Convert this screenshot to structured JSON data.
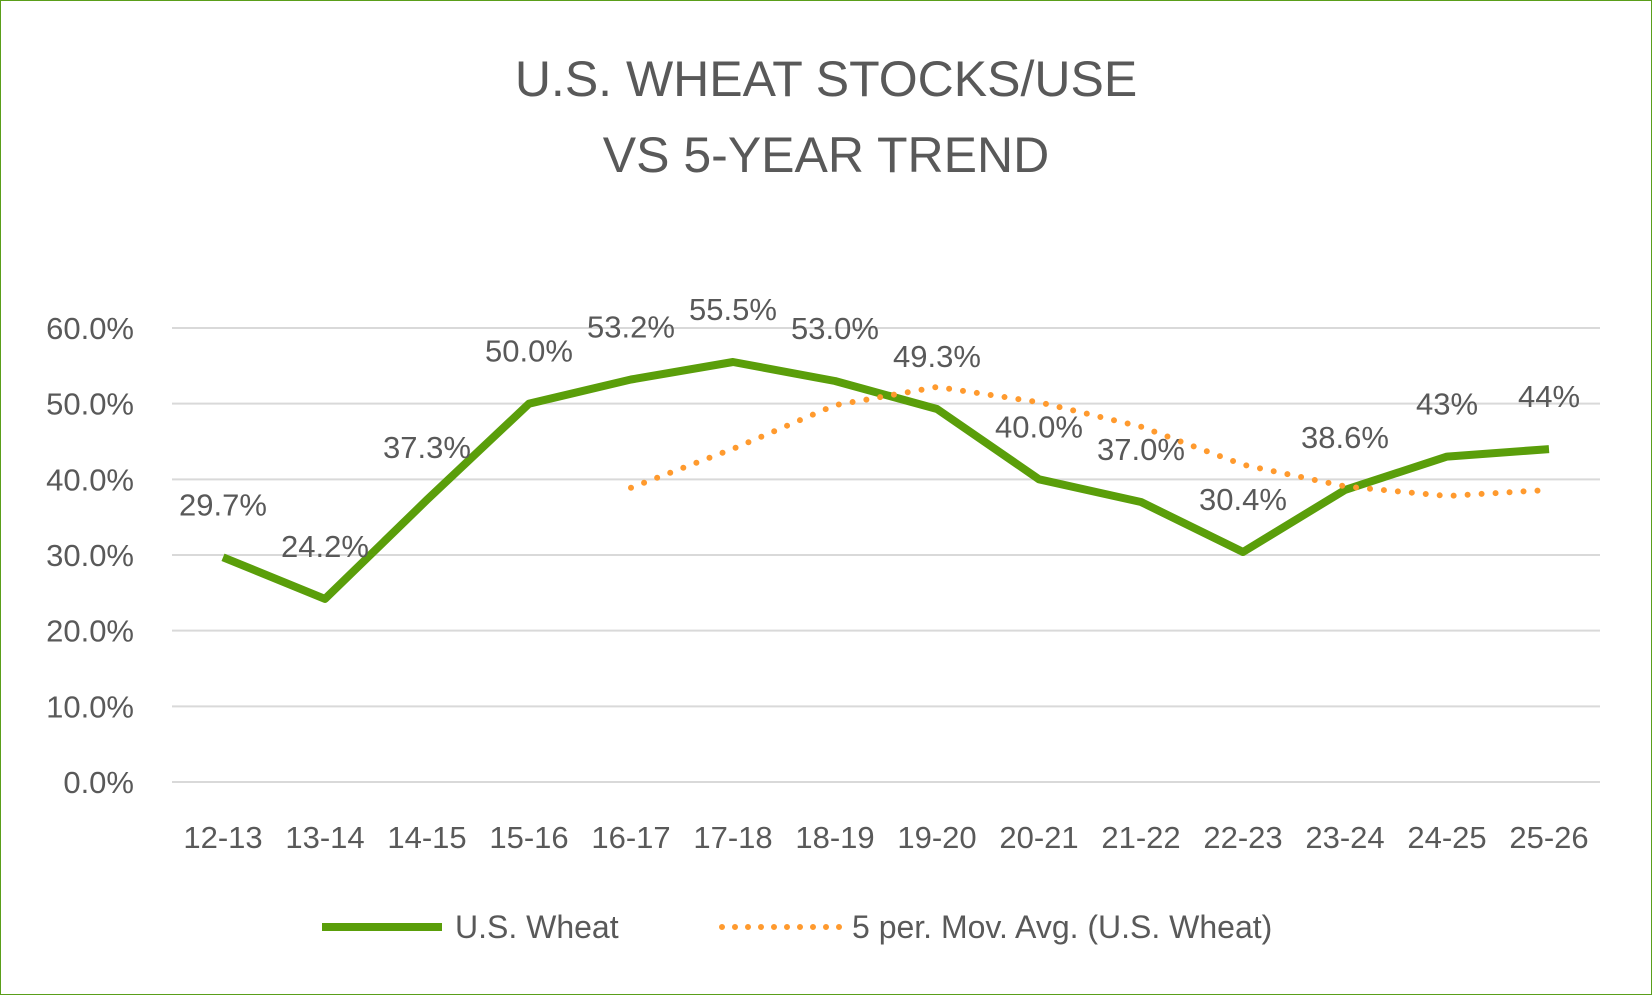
{
  "chart_data": {
    "type": "line",
    "title": [
      "U.S. WHEAT STOCKS/USE",
      "VS 5-YEAR TREND"
    ],
    "xlabel": "",
    "ylabel": "",
    "ylim": [
      0,
      60
    ],
    "yticks": [
      "0.0%",
      "10.0%",
      "20.0%",
      "30.0%",
      "40.0%",
      "50.0%",
      "60.0%"
    ],
    "grid": true,
    "legend_position": "bottom",
    "categories": [
      "12-13",
      "13-14",
      "14-15",
      "15-16",
      "16-17",
      "17-18",
      "18-19",
      "19-20",
      "20-21",
      "21-22",
      "22-23",
      "23-24",
      "24-25",
      "25-26"
    ],
    "series": [
      {
        "name": "U.S. Wheat",
        "color": "#5a9e0a",
        "style": "solid",
        "values": [
          29.7,
          24.2,
          37.3,
          50.0,
          53.2,
          55.5,
          53.0,
          49.3,
          40.0,
          37.0,
          30.4,
          38.6,
          43,
          44
        ],
        "labels": [
          "29.7%",
          "24.2%",
          "37.3%",
          "50.0%",
          "53.2%",
          "55.5%",
          "53.0%",
          "49.3%",
          "40.0%",
          "37.0%",
          "30.4%",
          "38.6%",
          "43%",
          "44%"
        ]
      },
      {
        "name": "5 per. Mov. Avg. (U.S. Wheat)",
        "color": "#ff9a2e",
        "style": "dotted",
        "values": [
          null,
          null,
          null,
          null,
          38.88,
          44.04,
          49.8,
          52.2,
          50.2,
          46.96,
          41.94,
          39.06,
          37.8,
          38.6
        ]
      }
    ]
  }
}
